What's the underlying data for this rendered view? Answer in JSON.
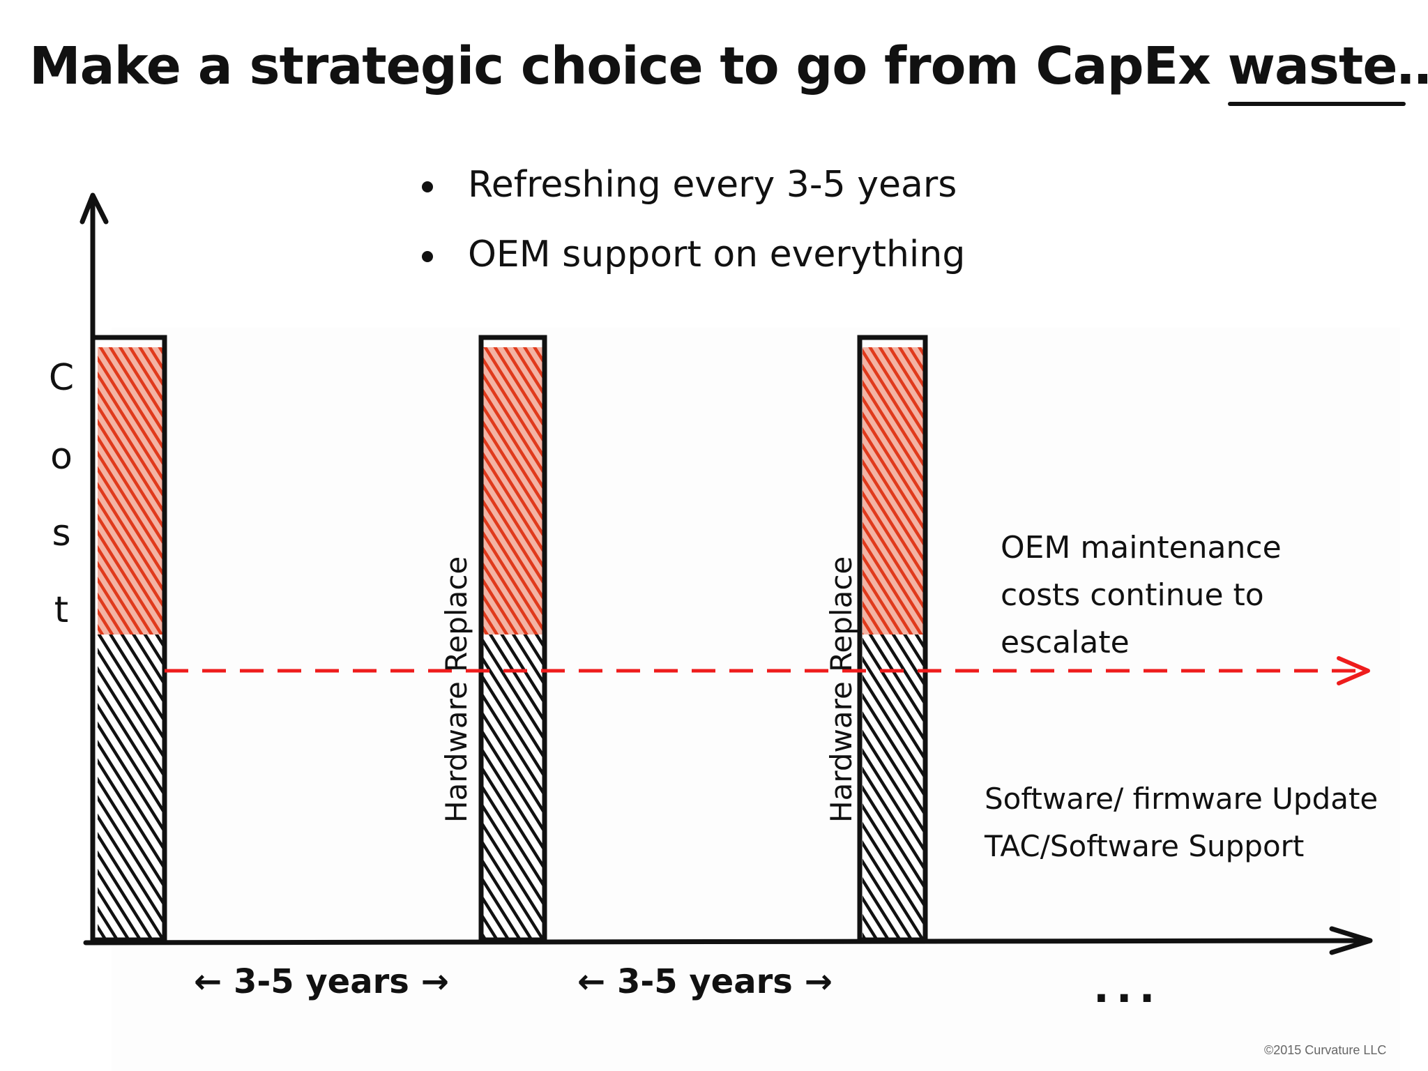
{
  "title": {
    "main": "Make a strategic choice to go from CapEx ",
    "emphasis": "waste",
    "ellipsis": "…"
  },
  "bullets": [
    "Refreshing every 3-5 years",
    "OEM support on everything"
  ],
  "y_axis": {
    "letters": [
      "C",
      "o",
      "s",
      "t"
    ]
  },
  "bars": {
    "replace_label": "Hardware Replace",
    "count": 3
  },
  "annotations": {
    "oem_maintenance": [
      "OEM maintenance",
      "costs continue to",
      "escalate"
    ],
    "support_lines": [
      "Software/ firmware Update",
      "TAC/Software Support"
    ]
  },
  "intervals": {
    "label": "3-5 years",
    "left_arrow": "←",
    "right_arrow": "→",
    "continuation": "..."
  },
  "footer": {
    "copyright": "©2015 Curvature LLC"
  },
  "colors": {
    "ink": "#111111",
    "red_fill": "#e03a1c",
    "dashed_line": "#ee1c1c",
    "background": "#ffffff"
  }
}
